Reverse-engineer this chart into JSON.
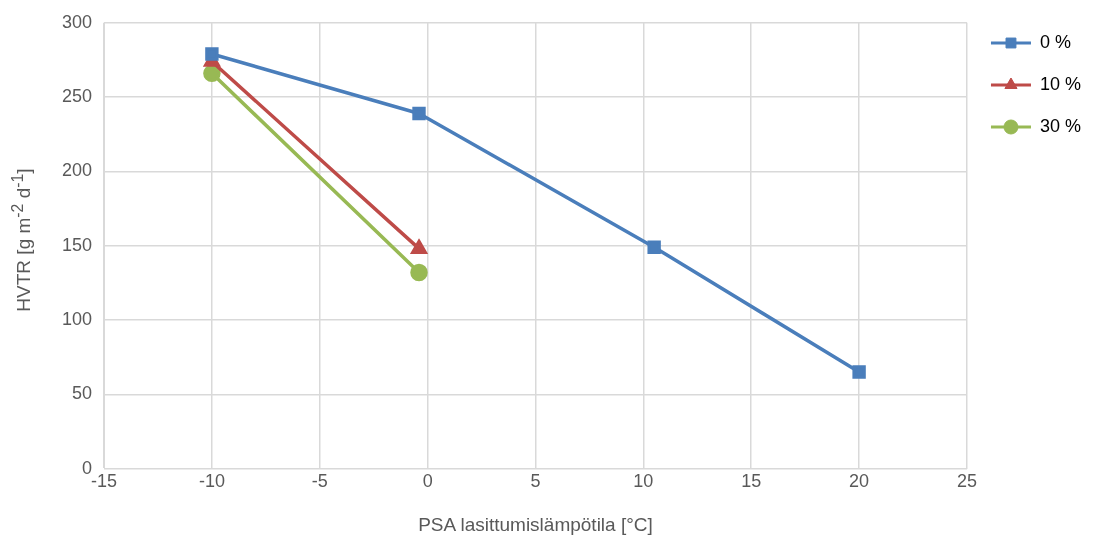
{
  "chart_data": {
    "type": "line",
    "xlabel": "PSA lasittumislämpötila [°C]",
    "ylabel": "HVTR [g m$^{-2}$ d$^{-1}$]",
    "xlim": [
      -15,
      25
    ],
    "xticks": [
      -15,
      -10,
      -5,
      0,
      5,
      10,
      15,
      20,
      25
    ],
    "ylim": [
      0,
      300
    ],
    "yticks": [
      0,
      50,
      100,
      150,
      200,
      250,
      300
    ],
    "grid": true,
    "legend": "right",
    "line_style": "solid",
    "series": [
      {
        "name": "0 %",
        "color": "#4a7ebb",
        "marker": "square",
        "x": [
          -10,
          -0.4,
          10.5,
          20
        ],
        "values": [
          279,
          239,
          149,
          65
        ]
      },
      {
        "name": "10 %",
        "color": "#be4b48",
        "marker": "triangle",
        "x": [
          -10,
          -0.4
        ],
        "values": [
          274,
          148
        ]
      },
      {
        "name": "30 %",
        "color": "#98b954",
        "marker": "circle",
        "x": [
          -10,
          -0.4
        ],
        "values": [
          266,
          132
        ]
      }
    ]
  }
}
